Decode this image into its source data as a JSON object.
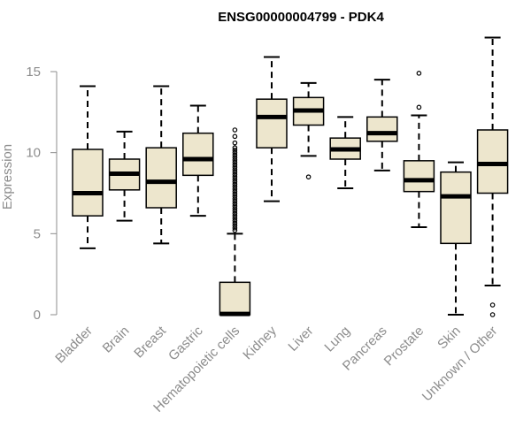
{
  "chart_data": {
    "type": "boxplot",
    "title": "ENSG00000004799 - PDK4",
    "xlabel": "",
    "ylabel": "Expression",
    "ylim": [
      0,
      17.5
    ],
    "yticks": [
      0,
      5,
      10,
      15
    ],
    "box_fill": "#ede6cd",
    "median_color": "#000000",
    "axis_color": "#8c8c8c",
    "categories": [
      "Bladder",
      "Brain",
      "Breast",
      "Gastric",
      "Hematopoietic cells",
      "Kidney",
      "Liver",
      "Lung",
      "Pancreas",
      "Prostate",
      "Skin",
      "Unknown / Other"
    ],
    "boxes": [
      {
        "category": "Bladder",
        "whisker_low": 4.1,
        "q1": 6.1,
        "median": 7.5,
        "q3": 10.2,
        "whisker_high": 14.1,
        "outliers": []
      },
      {
        "category": "Brain",
        "whisker_low": 5.8,
        "q1": 7.7,
        "median": 8.7,
        "q3": 9.6,
        "whisker_high": 11.3,
        "outliers": []
      },
      {
        "category": "Breast",
        "whisker_low": 4.4,
        "q1": 6.6,
        "median": 8.2,
        "q3": 10.3,
        "whisker_high": 14.1,
        "outliers": []
      },
      {
        "category": "Gastric",
        "whisker_low": 6.1,
        "q1": 8.6,
        "median": 9.6,
        "q3": 11.2,
        "whisker_high": 12.9,
        "outliers": []
      },
      {
        "category": "Hematopoietic cells",
        "whisker_low": 0.0,
        "q1": 0.0,
        "median": 0.05,
        "q3": 2.0,
        "whisker_high": 5.0,
        "outliers": [
          5.2,
          5.35,
          5.5,
          5.65,
          5.8,
          5.95,
          6.1,
          6.25,
          6.4,
          6.55,
          6.7,
          6.85,
          7.0,
          7.15,
          7.3,
          7.45,
          7.6,
          7.75,
          7.9,
          8.05,
          8.2,
          8.35,
          8.5,
          8.65,
          8.8,
          8.95,
          9.1,
          9.25,
          9.4,
          9.55,
          9.7,
          9.85,
          10.0,
          10.15,
          10.3,
          10.6,
          11.0,
          11.4
        ]
      },
      {
        "category": "Kidney",
        "whisker_low": 7.0,
        "q1": 10.3,
        "median": 12.2,
        "q3": 13.3,
        "whisker_high": 15.9,
        "outliers": []
      },
      {
        "category": "Liver",
        "whisker_low": 9.8,
        "q1": 11.7,
        "median": 12.6,
        "q3": 13.4,
        "whisker_high": 14.3,
        "outliers": [
          8.5
        ]
      },
      {
        "category": "Lung",
        "whisker_low": 7.8,
        "q1": 9.6,
        "median": 10.2,
        "q3": 10.9,
        "whisker_high": 12.2,
        "outliers": []
      },
      {
        "category": "Pancreas",
        "whisker_low": 8.9,
        "q1": 10.7,
        "median": 11.2,
        "q3": 12.2,
        "whisker_high": 14.5,
        "outliers": []
      },
      {
        "category": "Prostate",
        "whisker_low": 5.4,
        "q1": 7.6,
        "median": 8.3,
        "q3": 9.5,
        "whisker_high": 12.3,
        "outliers": [
          12.8,
          14.9
        ]
      },
      {
        "category": "Skin",
        "whisker_low": 0.0,
        "q1": 4.4,
        "median": 7.3,
        "q3": 8.8,
        "whisker_high": 9.4,
        "outliers": []
      },
      {
        "category": "Unknown / Other",
        "whisker_low": 1.8,
        "q1": 7.5,
        "median": 9.3,
        "q3": 11.4,
        "whisker_high": 17.1,
        "outliers": [
          0.0,
          0.6
        ]
      }
    ]
  }
}
